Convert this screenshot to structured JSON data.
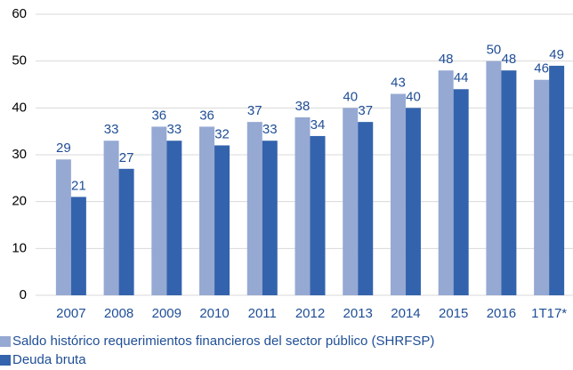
{
  "chart_data": {
    "type": "bar",
    "categories": [
      "2007",
      "2008",
      "2009",
      "2010",
      "2011",
      "2012",
      "2013",
      "2014",
      "2015",
      "2016",
      "1T17*"
    ],
    "series": [
      {
        "name": "Saldo histórico requerimientos financieros del sector público (SHRFSP)",
        "color": "#96a9d3",
        "values": [
          29,
          33,
          36,
          36,
          37,
          38,
          40,
          43,
          48,
          50,
          46
        ]
      },
      {
        "name": "Deuda bruta",
        "color": "#3463ad",
        "values": [
          21,
          27,
          33,
          32,
          33,
          34,
          37,
          40,
          44,
          48,
          49
        ]
      }
    ],
    "ylim": [
      0,
      60
    ],
    "yticks": [
      0,
      10,
      20,
      30,
      40,
      50,
      60
    ],
    "grid": true,
    "legend": "bottom"
  }
}
